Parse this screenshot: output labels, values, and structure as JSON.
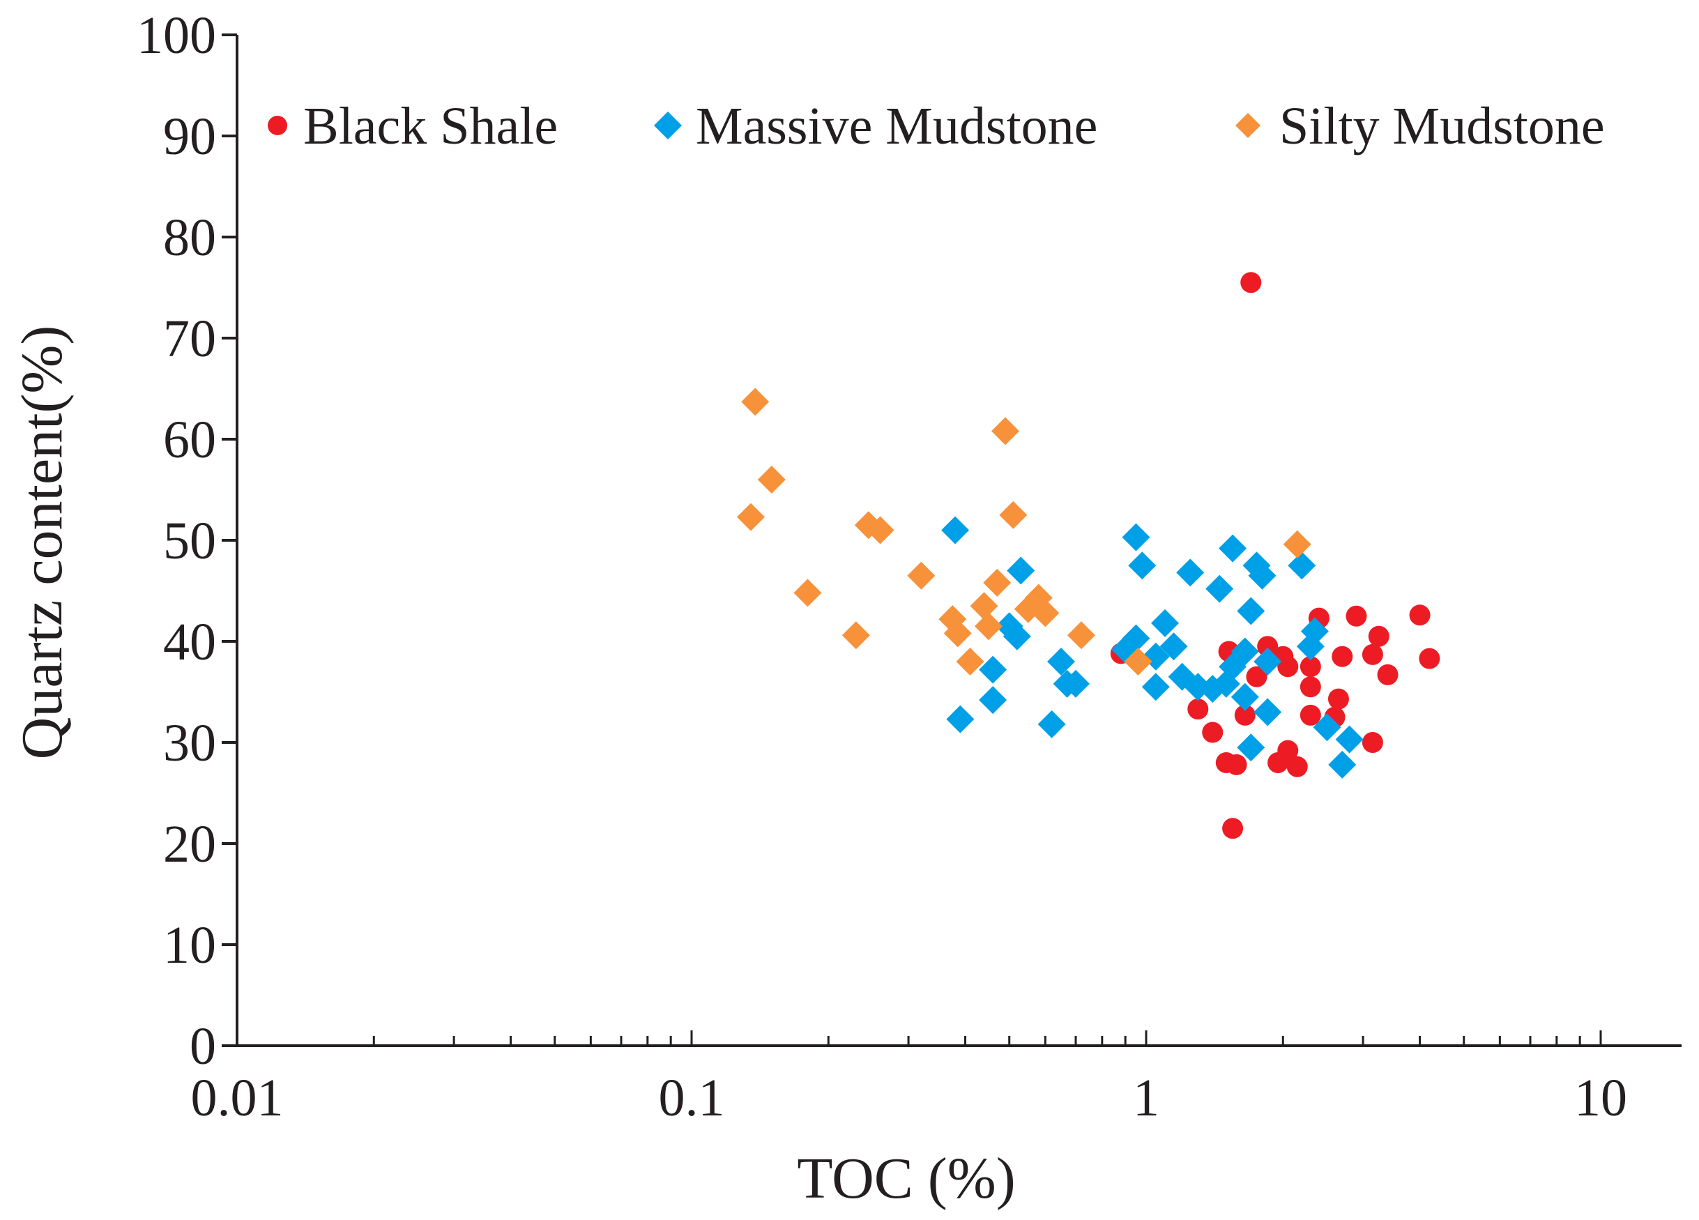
{
  "chart_data": {
    "type": "scatter",
    "title": "",
    "xlabel": "TOC (%)",
    "ylabel": "Quartz content(%)",
    "xscale": "log",
    "xlim": [
      0.01,
      15
    ],
    "ylim": [
      0,
      100
    ],
    "x_ticks": [
      {
        "value": 0.01,
        "label": "0.01"
      },
      {
        "value": 0.1,
        "label": "0.1"
      },
      {
        "value": 1,
        "label": "1"
      },
      {
        "value": 10,
        "label": "10"
      }
    ],
    "y_ticks": [
      {
        "value": 0,
        "label": "0"
      },
      {
        "value": 10,
        "label": "10"
      },
      {
        "value": 20,
        "label": "20"
      },
      {
        "value": 30,
        "label": "30"
      },
      {
        "value": 40,
        "label": "40"
      },
      {
        "value": 50,
        "label": "50"
      },
      {
        "value": 60,
        "label": "60"
      },
      {
        "value": 70,
        "label": "70"
      },
      {
        "value": 80,
        "label": "80"
      },
      {
        "value": 90,
        "label": "90"
      },
      {
        "value": 100,
        "label": "100"
      }
    ],
    "legend_position": "top",
    "series": [
      {
        "name": "Black Shale",
        "marker": "circle",
        "color": "#ed1c24",
        "points": [
          [
            1.7,
            75.5
          ],
          [
            1.55,
            21.5
          ],
          [
            0.88,
            38.8
          ],
          [
            1.3,
            33.3
          ],
          [
            1.4,
            31.0
          ],
          [
            1.5,
            28.0
          ],
          [
            1.58,
            27.8
          ],
          [
            1.52,
            39.0
          ],
          [
            1.65,
            32.7
          ],
          [
            1.75,
            36.5
          ],
          [
            1.85,
            39.5
          ],
          [
            2.0,
            38.5
          ],
          [
            2.05,
            37.5
          ],
          [
            1.95,
            28.0
          ],
          [
            2.05,
            29.2
          ],
          [
            2.15,
            27.6
          ],
          [
            2.3,
            37.5
          ],
          [
            2.3,
            35.5
          ],
          [
            2.3,
            32.7
          ],
          [
            2.4,
            42.3
          ],
          [
            2.6,
            32.5
          ],
          [
            2.65,
            34.3
          ],
          [
            2.7,
            38.5
          ],
          [
            2.9,
            42.5
          ],
          [
            3.15,
            38.7
          ],
          [
            3.25,
            40.5
          ],
          [
            3.15,
            30.0
          ],
          [
            3.4,
            36.7
          ],
          [
            4.0,
            42.6
          ],
          [
            4.2,
            38.3
          ]
        ]
      },
      {
        "name": "Massive Mudstone",
        "marker": "diamond",
        "color": "#00a0e9",
        "points": [
          [
            0.38,
            51.0
          ],
          [
            0.39,
            32.3
          ],
          [
            0.46,
            37.2
          ],
          [
            0.46,
            34.2
          ],
          [
            0.5,
            41.5
          ],
          [
            0.52,
            40.5
          ],
          [
            0.53,
            47.0
          ],
          [
            0.62,
            31.8
          ],
          [
            0.65,
            38.0
          ],
          [
            0.67,
            35.8
          ],
          [
            0.7,
            35.8
          ],
          [
            0.9,
            39.2
          ],
          [
            0.95,
            50.3
          ],
          [
            0.98,
            47.5
          ],
          [
            0.95,
            40.3
          ],
          [
            1.05,
            35.5
          ],
          [
            1.05,
            38.5
          ],
          [
            1.1,
            41.8
          ],
          [
            1.15,
            39.5
          ],
          [
            1.2,
            36.5
          ],
          [
            1.25,
            46.8
          ],
          [
            1.3,
            35.5
          ],
          [
            1.4,
            35.3
          ],
          [
            1.45,
            45.2
          ],
          [
            1.5,
            35.8
          ],
          [
            1.55,
            49.2
          ],
          [
            1.55,
            37.5
          ],
          [
            1.65,
            39.0
          ],
          [
            1.65,
            34.5
          ],
          [
            1.7,
            43.0
          ],
          [
            1.7,
            29.5
          ],
          [
            1.75,
            47.5
          ],
          [
            1.8,
            46.5
          ],
          [
            1.85,
            38.0
          ],
          [
            1.85,
            33.0
          ],
          [
            2.2,
            47.5
          ],
          [
            2.3,
            39.5
          ],
          [
            2.35,
            41.0
          ],
          [
            2.5,
            31.5
          ],
          [
            2.7,
            27.8
          ],
          [
            2.8,
            30.3
          ]
        ]
      },
      {
        "name": "Silty Mudstone",
        "marker": "diamond",
        "color": "#f7923a",
        "points": [
          [
            0.138,
            63.7
          ],
          [
            0.15,
            56.0
          ],
          [
            0.135,
            52.3
          ],
          [
            0.18,
            44.8
          ],
          [
            0.23,
            40.6
          ],
          [
            0.245,
            51.5
          ],
          [
            0.26,
            51.0
          ],
          [
            0.32,
            46.5
          ],
          [
            0.375,
            42.2
          ],
          [
            0.385,
            40.8
          ],
          [
            0.41,
            38.0
          ],
          [
            0.44,
            43.5
          ],
          [
            0.45,
            41.5
          ],
          [
            0.47,
            45.8
          ],
          [
            0.49,
            60.8
          ],
          [
            0.51,
            52.5
          ],
          [
            0.55,
            43.2
          ],
          [
            0.58,
            44.3
          ],
          [
            0.6,
            42.8
          ],
          [
            0.72,
            40.6
          ],
          [
            0.96,
            38.0
          ],
          [
            2.15,
            49.6
          ]
        ]
      }
    ]
  }
}
